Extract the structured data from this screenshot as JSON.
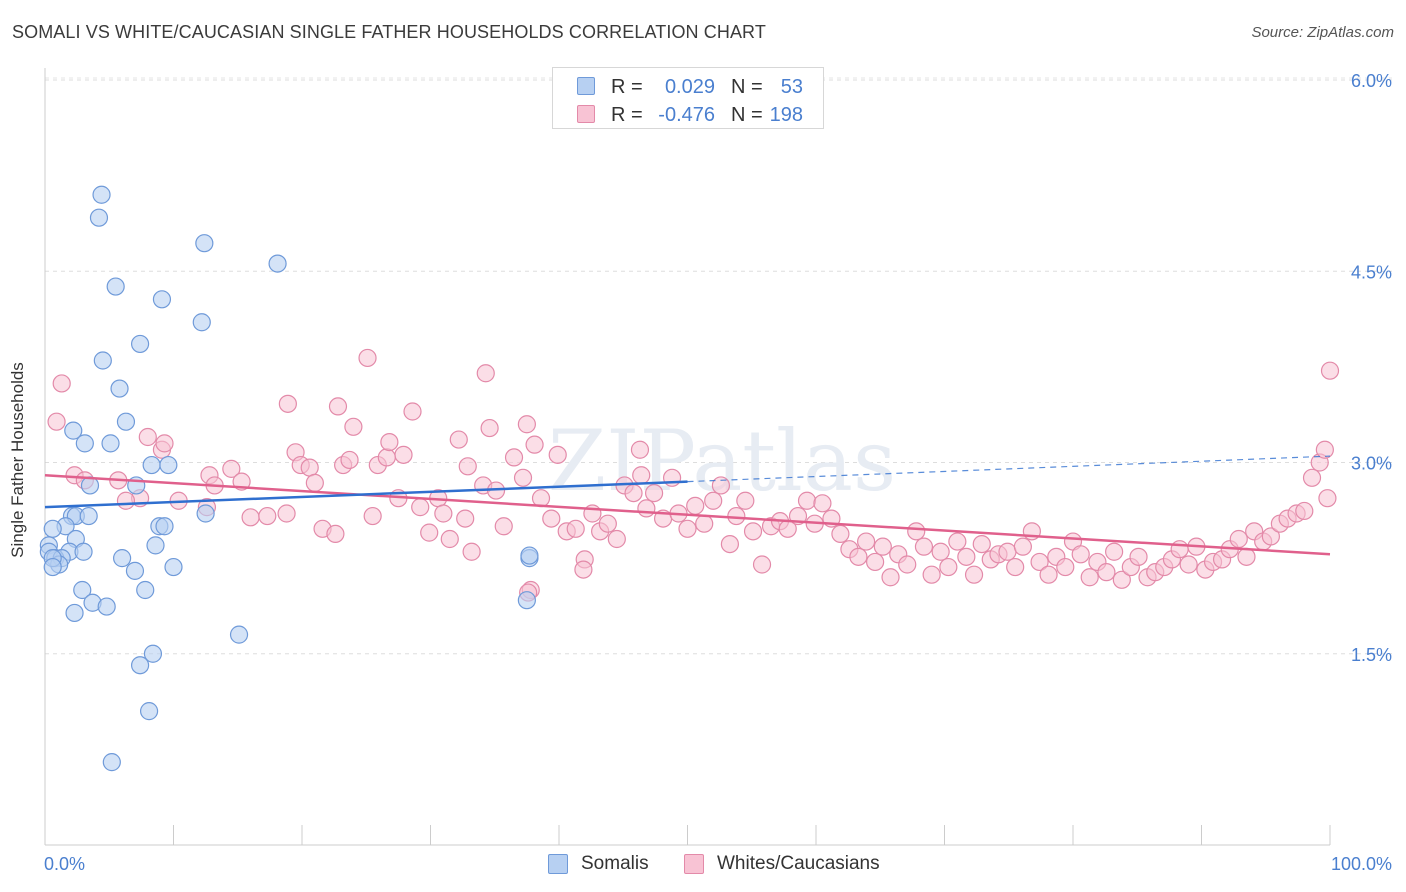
{
  "header": {
    "title": "SOMALI VS WHITE/CAUCASIAN SINGLE FATHER HOUSEHOLDS CORRELATION CHART",
    "source": "Source: ZipAtlas.com"
  },
  "watermark": "ZIPatlas",
  "stats": [
    {
      "r_label": "R =",
      "r_value": "0.029",
      "n_label": "N =",
      "n_value": "53",
      "color": "#4a7fcf"
    },
    {
      "r_label": "R =",
      "r_value": "-0.476",
      "n_label": "N =",
      "n_value": "198",
      "color": "#e0638f"
    }
  ],
  "legend": [
    {
      "name": "Somalis",
      "fill": "#b7d0f2",
      "stroke": "#6f9ad9"
    },
    {
      "name": "Whites/Caucasians",
      "fill": "#f8c3d4",
      "stroke": "#e38aa9"
    }
  ],
  "chart_data": {
    "type": "scatter",
    "ylabel": "Single Father Households",
    "xlim": [
      0,
      100
    ],
    "ylim": [
      0,
      6.2
    ],
    "x_tick_labels": [
      "0.0%",
      "100.0%"
    ],
    "y_ticks": [
      1.5,
      3.0,
      4.5,
      6.0
    ],
    "y_tick_labels": [
      "1.5%",
      "3.0%",
      "4.5%",
      "6.0%"
    ],
    "grid": "horizontal dashed",
    "legend_position": "bottom-center",
    "colors": {
      "somali_fill": "#b7d0f2",
      "somali_stroke": "#6f9ad9",
      "somali_line": "#2f6fcf",
      "white_fill": "#f8c3d4",
      "white_stroke": "#e38aa9",
      "white_line": "#e0608c",
      "tick_label": "#4a7fcf"
    },
    "series": [
      {
        "name": "Somalis",
        "trend": {
          "x": [
            0,
            50
          ],
          "y": [
            2.65,
            2.85
          ],
          "dashed_extension": {
            "x": [
              50,
              100
            ],
            "y": [
              2.85,
              3.05
            ]
          }
        },
        "points": [
          [
            4.4,
            5.1
          ],
          [
            4.2,
            4.92
          ],
          [
            12.4,
            4.72
          ],
          [
            18.1,
            4.56
          ],
          [
            5.5,
            4.38
          ],
          [
            9.1,
            4.28
          ],
          [
            12.2,
            4.1
          ],
          [
            7.4,
            3.93
          ],
          [
            4.5,
            3.8
          ],
          [
            5.8,
            3.58
          ],
          [
            2.2,
            3.25
          ],
          [
            6.3,
            3.32
          ],
          [
            3.1,
            3.15
          ],
          [
            5.1,
            3.15
          ],
          [
            8.3,
            2.98
          ],
          [
            9.6,
            2.98
          ],
          [
            3.5,
            2.82
          ],
          [
            7.1,
            2.82
          ],
          [
            2.1,
            2.58
          ],
          [
            2.4,
            2.58
          ],
          [
            3.4,
            2.58
          ],
          [
            12.5,
            2.6
          ],
          [
            1.6,
            2.5
          ],
          [
            0.6,
            2.48
          ],
          [
            0.3,
            2.35
          ],
          [
            2.4,
            2.4
          ],
          [
            1.9,
            2.3
          ],
          [
            3.0,
            2.3
          ],
          [
            8.6,
            2.35
          ],
          [
            0.3,
            2.3
          ],
          [
            0.8,
            2.25
          ],
          [
            1.3,
            2.25
          ],
          [
            1.1,
            2.2
          ],
          [
            0.6,
            2.25
          ],
          [
            6.0,
            2.25
          ],
          [
            8.9,
            2.5
          ],
          [
            9.3,
            2.5
          ],
          [
            10.0,
            2.18
          ],
          [
            7.0,
            2.15
          ],
          [
            0.6,
            2.18
          ],
          [
            2.9,
            2.0
          ],
          [
            7.8,
            2.0
          ],
          [
            3.7,
            1.9
          ],
          [
            4.8,
            1.87
          ],
          [
            2.3,
            1.82
          ],
          [
            15.1,
            1.65
          ],
          [
            8.4,
            1.5
          ],
          [
            7.4,
            1.41
          ],
          [
            37.7,
            2.25
          ],
          [
            37.7,
            2.27
          ],
          [
            37.5,
            1.92
          ],
          [
            8.1,
            1.05
          ],
          [
            5.2,
            0.65
          ]
        ]
      },
      {
        "name": "Whites/Caucasians",
        "trend": {
          "x": [
            0,
            100
          ],
          "y": [
            2.9,
            2.28
          ]
        },
        "points": [
          [
            1.3,
            3.62
          ],
          [
            0.9,
            3.32
          ],
          [
            8.0,
            3.2
          ],
          [
            9.1,
            3.1
          ],
          [
            9.3,
            3.15
          ],
          [
            2.3,
            2.9
          ],
          [
            3.1,
            2.86
          ],
          [
            5.7,
            2.86
          ],
          [
            7.4,
            2.72
          ],
          [
            10.4,
            2.7
          ],
          [
            12.6,
            2.65
          ],
          [
            6.3,
            2.7
          ],
          [
            12.8,
            2.9
          ],
          [
            13.2,
            2.82
          ],
          [
            14.5,
            2.95
          ],
          [
            15.3,
            2.85
          ],
          [
            16.0,
            2.57
          ],
          [
            17.3,
            2.58
          ],
          [
            18.8,
            2.6
          ],
          [
            19.5,
            3.08
          ],
          [
            19.9,
            2.98
          ],
          [
            20.6,
            2.96
          ],
          [
            21.0,
            2.84
          ],
          [
            21.6,
            2.48
          ],
          [
            22.6,
            2.44
          ],
          [
            23.2,
            2.98
          ],
          [
            23.7,
            3.02
          ],
          [
            24.0,
            3.28
          ],
          [
            25.1,
            3.82
          ],
          [
            25.5,
            2.58
          ],
          [
            25.9,
            2.98
          ],
          [
            26.6,
            3.04
          ],
          [
            26.8,
            3.16
          ],
          [
            27.5,
            2.72
          ],
          [
            27.9,
            3.06
          ],
          [
            28.6,
            3.4
          ],
          [
            29.2,
            2.65
          ],
          [
            29.9,
            2.45
          ],
          [
            30.6,
            2.72
          ],
          [
            31.0,
            2.6
          ],
          [
            31.5,
            2.4
          ],
          [
            32.2,
            3.18
          ],
          [
            32.7,
            2.56
          ],
          [
            33.2,
            2.3
          ],
          [
            32.9,
            2.97
          ],
          [
            34.1,
            2.82
          ],
          [
            34.6,
            3.27
          ],
          [
            35.1,
            2.78
          ],
          [
            35.7,
            2.5
          ],
          [
            36.5,
            3.04
          ],
          [
            37.2,
            2.88
          ],
          [
            37.5,
            3.3
          ],
          [
            38.1,
            3.14
          ],
          [
            38.6,
            2.72
          ],
          [
            39.4,
            2.56
          ],
          [
            39.9,
            3.06
          ],
          [
            40.6,
            2.46
          ],
          [
            41.3,
            2.48
          ],
          [
            42.0,
            2.24
          ],
          [
            42.6,
            2.6
          ],
          [
            43.2,
            2.46
          ],
          [
            43.8,
            2.52
          ],
          [
            44.5,
            2.4
          ],
          [
            45.1,
            2.82
          ],
          [
            45.8,
            2.76
          ],
          [
            46.3,
            3.1
          ],
          [
            46.8,
            2.64
          ],
          [
            47.4,
            2.76
          ],
          [
            48.1,
            2.56
          ],
          [
            48.8,
            2.88
          ],
          [
            49.3,
            2.6
          ],
          [
            50.0,
            2.48
          ],
          [
            50.6,
            2.66
          ],
          [
            51.3,
            2.52
          ],
          [
            52.0,
            2.7
          ],
          [
            52.6,
            2.82
          ],
          [
            53.3,
            2.36
          ],
          [
            53.8,
            2.58
          ],
          [
            54.5,
            2.7
          ],
          [
            55.1,
            2.46
          ],
          [
            55.8,
            2.2
          ],
          [
            56.5,
            2.5
          ],
          [
            57.2,
            2.54
          ],
          [
            57.8,
            2.48
          ],
          [
            58.6,
            2.58
          ],
          [
            59.3,
            2.7
          ],
          [
            59.9,
            2.52
          ],
          [
            60.5,
            2.68
          ],
          [
            61.2,
            2.56
          ],
          [
            61.9,
            2.44
          ],
          [
            62.6,
            2.32
          ],
          [
            63.3,
            2.26
          ],
          [
            63.9,
            2.38
          ],
          [
            64.6,
            2.22
          ],
          [
            65.2,
            2.34
          ],
          [
            65.8,
            2.1
          ],
          [
            66.4,
            2.28
          ],
          [
            67.1,
            2.2
          ],
          [
            67.8,
            2.46
          ],
          [
            68.4,
            2.34
          ],
          [
            69.0,
            2.12
          ],
          [
            69.7,
            2.3
          ],
          [
            70.3,
            2.18
          ],
          [
            71.0,
            2.38
          ],
          [
            71.7,
            2.26
          ],
          [
            72.3,
            2.12
          ],
          [
            72.9,
            2.36
          ],
          [
            73.6,
            2.24
          ],
          [
            74.2,
            2.28
          ],
          [
            74.9,
            2.3
          ],
          [
            75.5,
            2.18
          ],
          [
            76.1,
            2.34
          ],
          [
            76.8,
            2.46
          ],
          [
            77.4,
            2.22
          ],
          [
            78.1,
            2.12
          ],
          [
            78.7,
            2.26
          ],
          [
            79.4,
            2.18
          ],
          [
            80.0,
            2.38
          ],
          [
            80.6,
            2.28
          ],
          [
            81.3,
            2.1
          ],
          [
            81.9,
            2.22
          ],
          [
            82.6,
            2.14
          ],
          [
            83.2,
            2.3
          ],
          [
            83.8,
            2.08
          ],
          [
            84.5,
            2.18
          ],
          [
            85.1,
            2.26
          ],
          [
            85.8,
            2.1
          ],
          [
            86.4,
            2.14
          ],
          [
            87.1,
            2.18
          ],
          [
            87.7,
            2.24
          ],
          [
            88.3,
            2.32
          ],
          [
            89.0,
            2.2
          ],
          [
            89.6,
            2.34
          ],
          [
            90.3,
            2.16
          ],
          [
            90.9,
            2.22
          ],
          [
            91.6,
            2.24
          ],
          [
            92.2,
            2.32
          ],
          [
            92.9,
            2.4
          ],
          [
            93.5,
            2.26
          ],
          [
            94.1,
            2.46
          ],
          [
            94.8,
            2.38
          ],
          [
            95.4,
            2.42
          ],
          [
            96.1,
            2.52
          ],
          [
            96.7,
            2.56
          ],
          [
            97.4,
            2.6
          ],
          [
            98.0,
            2.62
          ],
          [
            98.6,
            2.88
          ],
          [
            99.2,
            3.0
          ],
          [
            99.6,
            3.1
          ],
          [
            99.8,
            2.72
          ],
          [
            100.0,
            3.72
          ],
          [
            37.8,
            2.0
          ],
          [
            37.6,
            1.98
          ],
          [
            41.9,
            2.16
          ],
          [
            34.3,
            3.7
          ],
          [
            46.4,
            2.9
          ],
          [
            22.8,
            3.44
          ],
          [
            18.9,
            3.46
          ]
        ]
      }
    ]
  }
}
